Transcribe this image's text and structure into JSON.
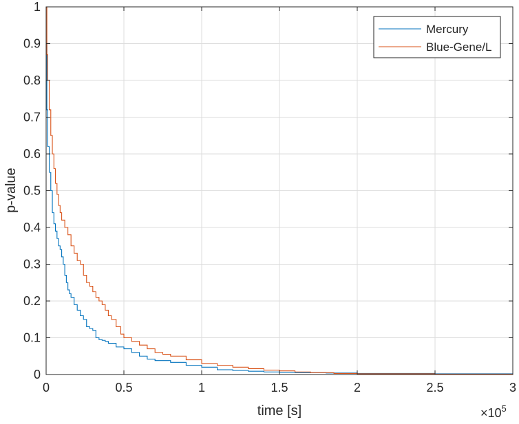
{
  "chart_data": {
    "type": "line",
    "title": "",
    "xlabel": "time [s]",
    "ylabel": "p-value",
    "x_exponent_label": "×10",
    "x_exponent_power": "5",
    "x_multiplier": 100000,
    "xlim": [
      0,
      300000
    ],
    "ylim": [
      0,
      1
    ],
    "x_ticks": [
      0,
      50000,
      100000,
      150000,
      200000,
      250000,
      300000
    ],
    "x_tick_labels": [
      "0",
      "0.5",
      "1",
      "1.5",
      "2",
      "2.5",
      "3"
    ],
    "y_ticks": [
      0,
      0.1,
      0.2,
      0.3,
      0.4,
      0.5,
      0.6,
      0.7,
      0.8,
      0.9,
      1
    ],
    "y_tick_labels": [
      "0",
      "0.1",
      "0.2",
      "0.3",
      "0.4",
      "0.5",
      "0.6",
      "0.7",
      "0.8",
      "0.9",
      "1"
    ],
    "grid": true,
    "legend_position": "top-right",
    "series": [
      {
        "name": "Mercury",
        "color": "#0072BD",
        "x": [
          0,
          500,
          1000,
          2000,
          3000,
          4000,
          5000,
          6000,
          7000,
          8000,
          9000,
          10000,
          11000,
          12000,
          13000,
          14000,
          15000,
          16000,
          18000,
          20000,
          22000,
          24000,
          26000,
          28000,
          30000,
          32000,
          34000,
          36000,
          38000,
          40000,
          45000,
          50000,
          55000,
          60000,
          65000,
          70000,
          80000,
          90000,
          100000,
          110000,
          120000,
          130000,
          140000,
          150000,
          160000,
          180000,
          200000,
          250000,
          300000
        ],
        "y": [
          0.9,
          0.72,
          0.62,
          0.55,
          0.5,
          0.44,
          0.41,
          0.39,
          0.37,
          0.35,
          0.34,
          0.32,
          0.3,
          0.27,
          0.25,
          0.23,
          0.22,
          0.21,
          0.19,
          0.175,
          0.16,
          0.15,
          0.13,
          0.125,
          0.12,
          0.1,
          0.095,
          0.093,
          0.09,
          0.085,
          0.075,
          0.07,
          0.06,
          0.05,
          0.042,
          0.038,
          0.033,
          0.025,
          0.02,
          0.013,
          0.011,
          0.009,
          0.007,
          0.006,
          0.005,
          0.004,
          0.003,
          0.002,
          0.001
        ]
      },
      {
        "name": "Blue-Gene/L",
        "color": "#D95319",
        "x": [
          0,
          500,
          1000,
          2000,
          3000,
          4000,
          5000,
          6000,
          7000,
          8000,
          9000,
          10000,
          12000,
          14000,
          16000,
          18000,
          20000,
          22000,
          24000,
          26000,
          28000,
          30000,
          32000,
          34000,
          36000,
          38000,
          40000,
          42000,
          45000,
          48000,
          50000,
          55000,
          60000,
          65000,
          70000,
          75000,
          80000,
          90000,
          100000,
          110000,
          120000,
          130000,
          140000,
          150000,
          160000,
          170000,
          185000,
          200000,
          250000,
          300000
        ],
        "y": [
          1.0,
          0.87,
          0.8,
          0.72,
          0.65,
          0.6,
          0.56,
          0.52,
          0.49,
          0.46,
          0.44,
          0.42,
          0.4,
          0.38,
          0.35,
          0.33,
          0.31,
          0.3,
          0.27,
          0.25,
          0.24,
          0.225,
          0.21,
          0.2,
          0.19,
          0.175,
          0.16,
          0.15,
          0.13,
          0.11,
          0.1,
          0.09,
          0.08,
          0.07,
          0.06,
          0.055,
          0.05,
          0.04,
          0.03,
          0.025,
          0.02,
          0.016,
          0.012,
          0.01,
          0.007,
          0.005,
          0.003,
          0.002,
          0.001,
          0.0
        ]
      }
    ]
  }
}
